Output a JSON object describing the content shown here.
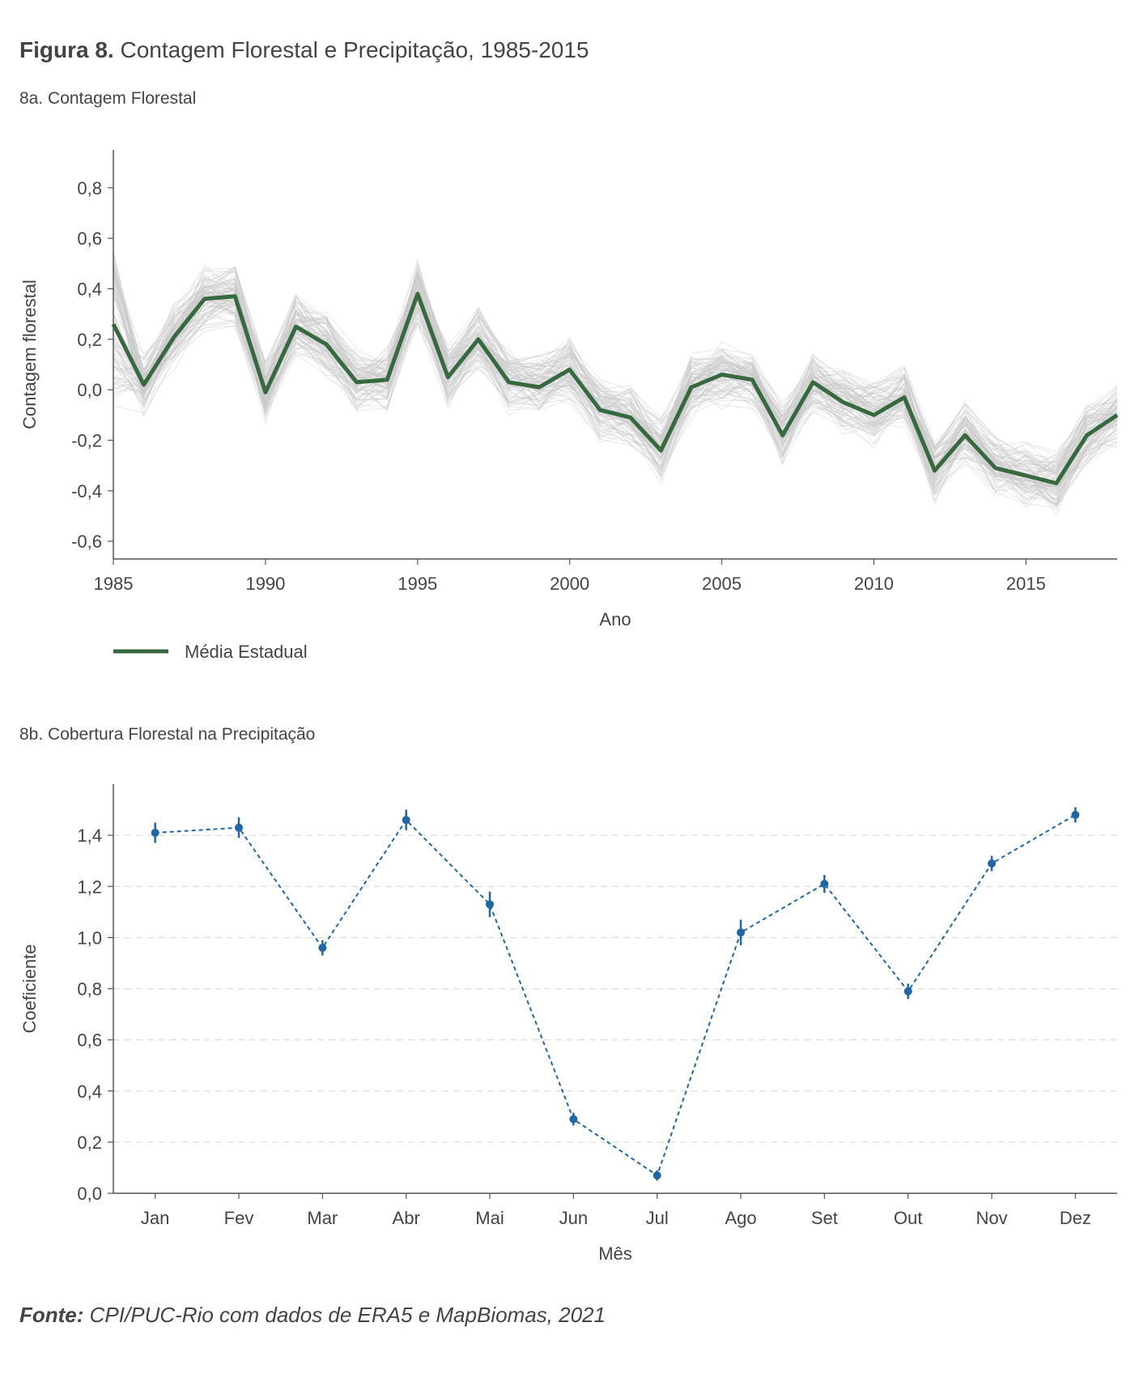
{
  "figure": {
    "label": "Figura 8.",
    "title": "Contagem Florestal e Precipitação, 1985-2015"
  },
  "source": {
    "label": "Fonte:",
    "text": "CPI/PUC-Rio com dados de ERA5 e MapBiomas, 2021"
  },
  "colors": {
    "mean_line": "#366a3e",
    "background_lines": "#c8c8c8",
    "coef_series": "#2166a5",
    "axis": "#555555",
    "grid": "#dddddd"
  },
  "chart_data": [
    {
      "id": "8a",
      "type": "line",
      "title": "8a. Contagem Florestal",
      "xlabel": "Ano",
      "ylabel": "Contagem florestal",
      "xlim": [
        1985,
        2018
      ],
      "ylim": [
        -0.67,
        0.95
      ],
      "xticks": [
        1985,
        1990,
        1995,
        2000,
        2005,
        2010,
        2015
      ],
      "yticks": [
        -0.6,
        -0.4,
        -0.2,
        0.0,
        0.2,
        0.4,
        0.6,
        0.8
      ],
      "yticklabels": [
        "-0,6",
        "-0,4",
        "-0,2",
        "0,0",
        "0,2",
        "0,4",
        "0,6",
        "0,8"
      ],
      "grid": false,
      "legend_position": "bottom-left",
      "background_series_count": 100,
      "series": [
        {
          "name": "Média Estadual",
          "x": [
            1985,
            1986,
            1987,
            1988,
            1989,
            1990,
            1991,
            1992,
            1993,
            1994,
            1995,
            1996,
            1997,
            1998,
            1999,
            2000,
            2001,
            2002,
            2003,
            2004,
            2005,
            2006,
            2007,
            2008,
            2009,
            2010,
            2011,
            2012,
            2013,
            2014,
            2015,
            2016,
            2017,
            2018
          ],
          "values": [
            0.26,
            0.02,
            0.21,
            0.36,
            0.37,
            -0.01,
            0.25,
            0.18,
            0.03,
            0.04,
            0.38,
            0.05,
            0.2,
            0.03,
            0.01,
            0.08,
            -0.08,
            -0.11,
            -0.24,
            0.01,
            0.06,
            0.04,
            -0.18,
            0.03,
            -0.05,
            -0.1,
            -0.03,
            -0.32,
            -0.18,
            -0.31,
            -0.34,
            -0.37,
            -0.18,
            -0.1
          ]
        }
      ]
    },
    {
      "id": "8b",
      "type": "line",
      "title": "8b. Cobertura Florestal na Precipitação",
      "xlabel": "Mês",
      "ylabel": "Coeficiente",
      "ylim": [
        0.0,
        1.6
      ],
      "yticks": [
        0.0,
        0.2,
        0.4,
        0.6,
        0.8,
        1.0,
        1.2,
        1.4
      ],
      "yticklabels": [
        "0,0",
        "0,2",
        "0,4",
        "0,6",
        "0,8",
        "1,0",
        "1,2",
        "1,4"
      ],
      "grid": true,
      "categories": [
        "Jan",
        "Fev",
        "Mar",
        "Abr",
        "Mai",
        "Jun",
        "Jul",
        "Ago",
        "Set",
        "Out",
        "Nov",
        "Dez"
      ],
      "values": [
        1.41,
        1.43,
        0.96,
        1.46,
        1.13,
        0.29,
        0.07,
        1.02,
        1.21,
        0.79,
        1.29,
        1.48
      ],
      "error": [
        0.04,
        0.04,
        0.03,
        0.04,
        0.05,
        0.025,
        0.02,
        0.05,
        0.035,
        0.03,
        0.03,
        0.03
      ]
    }
  ]
}
